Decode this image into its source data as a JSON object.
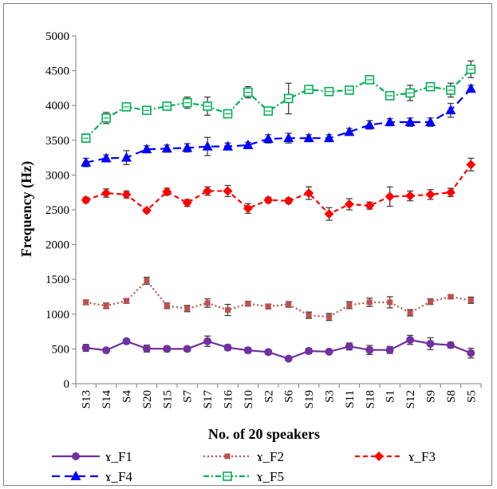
{
  "chart_data": {
    "type": "line",
    "title": "",
    "xlabel": "No. of 20 speakers",
    "ylabel": "Frequency (Hz)",
    "ylim": [
      0,
      5000
    ],
    "yticks": [
      0,
      500,
      1000,
      1500,
      2000,
      2500,
      3000,
      3500,
      4000,
      4500,
      5000
    ],
    "grid": false,
    "legend_position": "bottom",
    "categories": [
      "S13",
      "S14",
      "S4",
      "S20",
      "S15",
      "S7",
      "S17",
      "S16",
      "S10",
      "S2",
      "S6",
      "S19",
      "S3",
      "S11",
      "S18",
      "S1",
      "S12",
      "S9",
      "S8",
      "S5"
    ],
    "series": [
      {
        "name": "ɤ_F1",
        "color": "#7030a0",
        "marker": "circle",
        "dash": "solid",
        "values": [
          515,
          480,
          610,
          505,
          500,
          500,
          610,
          520,
          480,
          455,
          360,
          470,
          460,
          535,
          485,
          485,
          630,
          575,
          555,
          440
        ],
        "errors": [
          50,
          30,
          35,
          50,
          40,
          35,
          75,
          40,
          40,
          30,
          25,
          40,
          30,
          50,
          65,
          50,
          65,
          85,
          40,
          70
        ]
      },
      {
        "name": "ɤ_F2",
        "color": "#c0504d",
        "marker": "square",
        "dash": "dotted",
        "values": [
          1170,
          1120,
          1190,
          1480,
          1120,
          1080,
          1160,
          1060,
          1150,
          1110,
          1140,
          985,
          960,
          1130,
          1170,
          1170,
          1020,
          1180,
          1250,
          1200
        ],
        "errors": [
          35,
          40,
          35,
          50,
          40,
          45,
          60,
          80,
          35,
          35,
          40,
          45,
          50,
          50,
          60,
          80,
          45,
          40,
          25,
          45
        ]
      },
      {
        "name": "ɤ_F3",
        "color": "#ff0000",
        "marker": "diamond",
        "dash": "dashed",
        "values": [
          2640,
          2740,
          2720,
          2490,
          2760,
          2600,
          2770,
          2770,
          2520,
          2640,
          2630,
          2740,
          2440,
          2580,
          2560,
          2690,
          2700,
          2720,
          2750,
          3150
        ],
        "errors": [
          40,
          60,
          50,
          30,
          50,
          50,
          60,
          80,
          70,
          40,
          40,
          90,
          90,
          80,
          50,
          140,
          70,
          70,
          60,
          90
        ]
      },
      {
        "name": "ɤ_F4",
        "color": "#0000ff",
        "marker": "triangle",
        "dash": "longdash",
        "values": [
          3180,
          3240,
          3250,
          3370,
          3380,
          3390,
          3410,
          3410,
          3430,
          3520,
          3530,
          3530,
          3530,
          3620,
          3720,
          3760,
          3760,
          3760,
          3930,
          4240
        ],
        "errors": [
          60,
          50,
          100,
          50,
          50,
          60,
          130,
          50,
          40,
          60,
          70,
          50,
          50,
          50,
          60,
          50,
          60,
          60,
          100,
          50
        ]
      },
      {
        "name": "ɤ_F5",
        "color": "#00b050",
        "marker": "square-open",
        "dash": "dashdot",
        "values": [
          3530,
          3820,
          3980,
          3930,
          3990,
          4040,
          3990,
          3880,
          4190,
          3920,
          4100,
          4230,
          4200,
          4220,
          4370,
          4140,
          4180,
          4270,
          4220,
          4520
        ],
        "errors": [
          60,
          80,
          40,
          40,
          40,
          80,
          130,
          50,
          80,
          40,
          220,
          40,
          40,
          40,
          50,
          40,
          110,
          50,
          100,
          120
        ]
      }
    ]
  }
}
